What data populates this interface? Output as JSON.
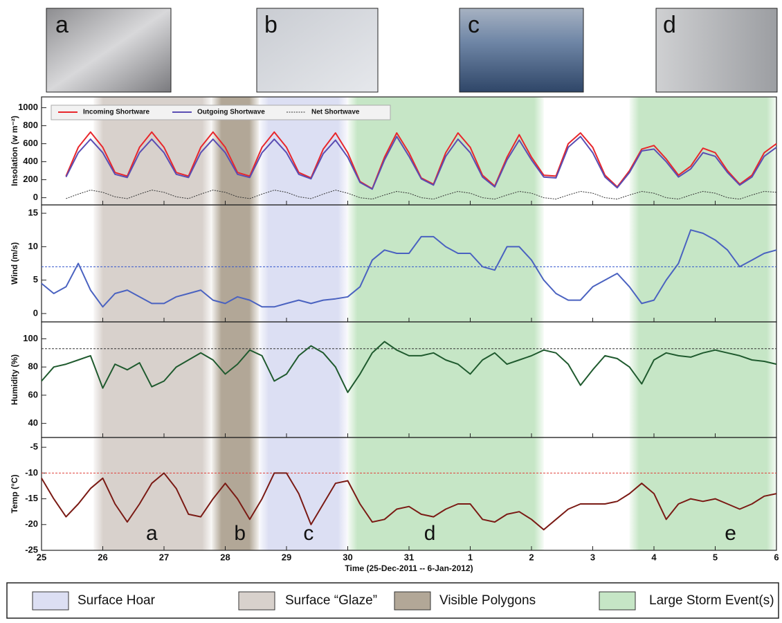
{
  "photos": [
    "a",
    "b",
    "c",
    "d"
  ],
  "chart_data": {
    "type": "line",
    "xlabel": "Time (25-Dec-2011 -- 6-Jan-2012)",
    "xlim": [
      0,
      12
    ],
    "xticks": [
      {
        "value": 0,
        "label": "25"
      },
      {
        "value": 1,
        "label": "26"
      },
      {
        "value": 2,
        "label": "27"
      },
      {
        "value": 3,
        "label": "28"
      },
      {
        "value": 4,
        "label": "29"
      },
      {
        "value": 5,
        "label": "30"
      },
      {
        "value": 6,
        "label": "31"
      },
      {
        "value": 7,
        "label": "1"
      },
      {
        "value": 8,
        "label": "2"
      },
      {
        "value": 9,
        "label": "3"
      },
      {
        "value": 10,
        "label": "4"
      },
      {
        "value": 11,
        "label": "5"
      },
      {
        "value": 12,
        "label": "6"
      }
    ],
    "x": [
      0,
      0.2,
      0.4,
      0.6,
      0.8,
      1,
      1.2,
      1.4,
      1.6,
      1.8,
      2,
      2.2,
      2.4,
      2.6,
      2.8,
      3,
      3.2,
      3.4,
      3.6,
      3.8,
      4,
      4.2,
      4.4,
      4.6,
      4.8,
      5,
      5.2,
      5.4,
      5.6,
      5.8,
      6,
      6.2,
      6.4,
      6.6,
      6.8,
      7,
      7.2,
      7.4,
      7.6,
      7.8,
      8,
      8.2,
      8.4,
      8.6,
      8.8,
      9,
      9.2,
      9.4,
      9.6,
      9.8,
      10,
      10.2,
      10.4,
      10.6,
      10.8,
      11,
      11.2,
      11.4,
      11.6,
      11.8,
      12
    ],
    "regions": [
      {
        "name": "Surface Hoar",
        "color": "#dcdff3",
        "spans": [
          [
            3.55,
            5.0
          ]
        ]
      },
      {
        "name": "Surface “Glaze”",
        "color": "#d8d1cc",
        "spans": [
          [
            0.85,
            2.78
          ]
        ]
      },
      {
        "name": "Visible Polygons",
        "color": "#b2a797",
        "spans": [
          [
            2.78,
            3.55
          ]
        ]
      },
      {
        "name": "Large Storm Event(s)",
        "color": "#c6e6c6",
        "spans": [
          [
            5.0,
            8.2
          ],
          [
            9.6,
            12
          ]
        ]
      }
    ],
    "annotations": [
      {
        "text": "a",
        "x": 1.8
      },
      {
        "text": "b",
        "x": 3.24
      },
      {
        "text": "c",
        "x": 4.36
      },
      {
        "text": "d",
        "x": 6.34
      },
      {
        "text": "e",
        "x": 11.25
      }
    ],
    "panels": [
      {
        "ylabel": "Insolation (w m⁻²)",
        "ylim": [
          -80,
          1120
        ],
        "yticks": [
          0,
          200,
          400,
          600,
          800,
          1000
        ],
        "series": [
          {
            "name": "Incoming Shortware",
            "color": "#e8262b",
            "values": [
              null,
              null,
              240,
              560,
              730,
              560,
              280,
              240,
              560,
              730,
              560,
              280,
              240,
              560,
              730,
              560,
              280,
              240,
              560,
              730,
              560,
              280,
              220,
              540,
              720,
              500,
              180,
              100,
              450,
              720,
              500,
              220,
              150,
              500,
              720,
              560,
              250,
              130,
              450,
              700,
              450,
              250,
              240,
              600,
              720,
              560,
              250,
              120,
              300,
              540,
              580,
              430,
              250,
              350,
              550,
              500,
              300,
              150,
              250,
              500,
              600
            ]
          },
          {
            "name": "Outgoing Shortwave",
            "color": "#5a4db3",
            "values": [
              null,
              null,
              230,
              500,
              650,
              500,
              260,
              225,
              500,
              650,
              500,
              260,
              225,
              500,
              650,
              500,
              260,
              225,
              500,
              650,
              500,
              260,
              210,
              490,
              640,
              450,
              170,
              95,
              420,
              680,
              460,
              210,
              140,
              460,
              650,
              500,
              230,
              120,
              420,
              640,
              420,
              230,
              220,
              560,
              680,
              500,
              230,
              110,
              280,
              520,
              540,
              400,
              230,
              320,
              500,
              460,
              280,
              140,
              230,
              460,
              560
            ]
          },
          {
            "name": "Net Shortwave",
            "color": "#333333",
            "values": [
              null,
              null,
              -10,
              40,
              85,
              60,
              10,
              -10,
              40,
              85,
              60,
              10,
              -10,
              40,
              85,
              60,
              10,
              -10,
              40,
              85,
              60,
              10,
              -10,
              40,
              85,
              50,
              0,
              -15,
              30,
              70,
              50,
              0,
              -15,
              30,
              70,
              50,
              0,
              -15,
              30,
              70,
              50,
              0,
              -15,
              30,
              70,
              50,
              0,
              -15,
              30,
              70,
              50,
              0,
              -15,
              30,
              70,
              50,
              0,
              -15,
              30,
              70,
              60
            ]
          }
        ]
      },
      {
        "ylabel": "Wind (m/s)",
        "ylim": [
          -1.25,
          16.25
        ],
        "yticks": [
          0,
          5,
          10,
          15
        ],
        "reference": {
          "value": 7,
          "color": "#3355cc"
        },
        "series": [
          {
            "color": "#4a62c0",
            "values": [
              4.5,
              3,
              4,
              7.5,
              3.5,
              1,
              3,
              3.5,
              2.5,
              1.5,
              1.5,
              2.5,
              3,
              3.5,
              2,
              1.5,
              2.5,
              2,
              1,
              1,
              1.5,
              2,
              1.5,
              2,
              2.2,
              2.5,
              4,
              8,
              9.5,
              9,
              9,
              11.5,
              11.5,
              10,
              9,
              9,
              7,
              6.5,
              10,
              10,
              8,
              5,
              3,
              2,
              2,
              4,
              5,
              6,
              4,
              1.5,
              2,
              5,
              7.5,
              12.5,
              12,
              11,
              9.5,
              7,
              8,
              9,
              9.5
            ]
          }
        ]
      },
      {
        "ylabel": "Humidity (%)",
        "ylim": [
          30,
          112
        ],
        "yticks": [
          40,
          60,
          80,
          100
        ],
        "reference": {
          "value": 93,
          "color": "#333333"
        },
        "series": [
          {
            "color": "#1f5a2e",
            "values": [
              70,
              80,
              82,
              85,
              88,
              65,
              82,
              78,
              83,
              66,
              70,
              80,
              85,
              90,
              85,
              75,
              82,
              92,
              88,
              70,
              75,
              88,
              95,
              90,
              80,
              62,
              75,
              90,
              98,
              92,
              88,
              88,
              90,
              85,
              82,
              75,
              85,
              90,
              82,
              85,
              88,
              92,
              90,
              82,
              67,
              78,
              88,
              86,
              80,
              68,
              85,
              90,
              88,
              87,
              90,
              92,
              90,
              88,
              85,
              84,
              82
            ]
          }
        ]
      },
      {
        "ylabel": "Temp (°C)",
        "ylim": [
          -25,
          -3.1
        ],
        "yticks": [
          -25,
          -20,
          -15,
          -10,
          -5
        ],
        "reference": {
          "value": -10,
          "color": "#e0403a"
        },
        "series": [
          {
            "color": "#7a1a14",
            "values": [
              -11,
              -15,
              -18.5,
              -16,
              -13,
              -11,
              -16,
              -19.5,
              -16,
              -12,
              -10,
              -13,
              -18,
              -18.5,
              -15,
              -12,
              -15,
              -19,
              -15,
              -10,
              -10,
              -14,
              -20,
              -16,
              -12,
              -11.5,
              -16,
              -19.5,
              -19,
              -17,
              -16.5,
              -18,
              -18.5,
              -17,
              -16,
              -16,
              -19,
              -19.5,
              -18,
              -17.5,
              -19,
              -21,
              -19,
              -17,
              -16,
              -16,
              -16,
              -15.5,
              -14,
              -12,
              -14,
              -19,
              -16,
              -15,
              -15.5,
              -15,
              -16,
              -17,
              -16,
              -14.5,
              -14
            ]
          }
        ]
      }
    ]
  }
}
